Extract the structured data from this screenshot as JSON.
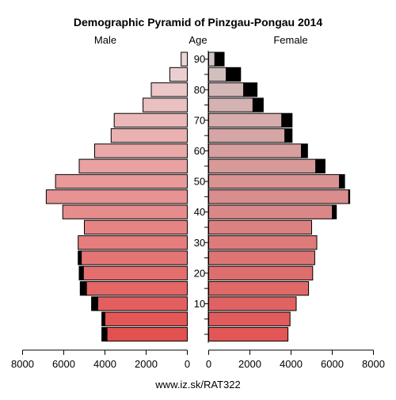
{
  "chart_data": {
    "type": "bar",
    "title": "Demographic Pyramid of Pinzgau-Pongau 2014",
    "left_label": "Male",
    "center_label": "Age",
    "right_label": "Female",
    "footer": "www.iz.sk/RAT322",
    "x_max": 8000,
    "x_ticks": [
      0,
      2000,
      4000,
      6000,
      8000
    ],
    "x_tick_labels": [
      "0",
      "2000",
      "4000",
      "6000",
      "8000"
    ],
    "age_groups": [
      "0-4",
      "5-9",
      "10-14",
      "15-19",
      "20-24",
      "25-29",
      "30-34",
      "35-39",
      "40-44",
      "45-49",
      "50-54",
      "55-59",
      "60-64",
      "65-69",
      "70-74",
      "75-79",
      "80-84",
      "85-89",
      "90+"
    ],
    "age_tick_labels": [
      "10",
      "20",
      "30",
      "40",
      "50",
      "60",
      "70",
      "80",
      "90"
    ],
    "series": [
      {
        "name": "Male",
        "values": [
          3900,
          4000,
          4350,
          4900,
          5050,
          5150,
          5300,
          5000,
          6050,
          6850,
          6400,
          5250,
          4500,
          3700,
          3550,
          2150,
          1750,
          850,
          300
        ],
        "excess": [
          250,
          150,
          300,
          300,
          200,
          150,
          0,
          0,
          0,
          0,
          0,
          0,
          0,
          0,
          0,
          0,
          0,
          0,
          0
        ]
      },
      {
        "name": "Female",
        "values": [
          3850,
          3950,
          4250,
          4850,
          5050,
          5150,
          5250,
          5000,
          6000,
          6800,
          6350,
          5200,
          4500,
          3700,
          3550,
          2150,
          1700,
          850,
          300
        ],
        "excess": [
          0,
          0,
          0,
          0,
          0,
          0,
          0,
          0,
          200,
          50,
          250,
          450,
          300,
          350,
          500,
          500,
          650,
          700,
          450
        ]
      }
    ]
  }
}
